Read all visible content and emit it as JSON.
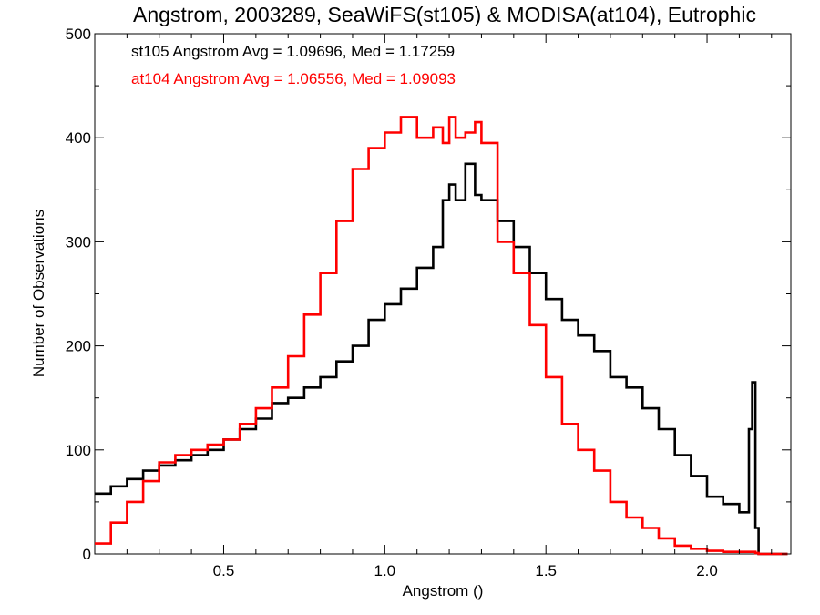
{
  "chart_data": {
    "type": "line",
    "title": "Angstrom, 2003289, SeaWiFS(st105) & MODISA(at104), Eutrophic",
    "xlabel": "Angstrom ()",
    "ylabel": "Number of Observations",
    "xlim": [
      0.1,
      2.26
    ],
    "ylim": [
      0,
      500
    ],
    "x_ticks": [
      0.5,
      1.0,
      1.5,
      2.0
    ],
    "x_tick_labels": [
      "0.5",
      "1.0",
      "1.5",
      "2.0"
    ],
    "y_ticks": [
      0,
      100,
      200,
      300,
      400,
      500
    ],
    "y_tick_labels": [
      "0",
      "100",
      "200",
      "300",
      "400",
      "500"
    ],
    "grid": false,
    "legend_placement": "top-left",
    "annotations": [
      {
        "text": "st105 Angstrom Avg = 1.09696, Med = 1.17259",
        "color": "#000000"
      },
      {
        "text": "at104 Angstrom Avg = 1.06556, Med = 1.09093",
        "color": "#ff0000"
      }
    ],
    "series": [
      {
        "color": "#000000",
        "x": [
          0.1,
          0.15,
          0.2,
          0.25,
          0.3,
          0.35,
          0.4,
          0.45,
          0.5,
          0.55,
          0.6,
          0.65,
          0.7,
          0.75,
          0.8,
          0.85,
          0.9,
          0.95,
          1.0,
          1.05,
          1.1,
          1.15,
          1.18,
          1.2,
          1.22,
          1.25,
          1.28,
          1.3,
          1.35,
          1.4,
          1.45,
          1.5,
          1.55,
          1.6,
          1.65,
          1.7,
          1.75,
          1.8,
          1.85,
          1.9,
          1.95,
          2.0,
          2.05,
          2.1,
          2.13,
          2.14,
          2.15,
          2.16,
          2.2,
          2.25
        ],
        "y": [
          58,
          65,
          72,
          80,
          85,
          90,
          95,
          100,
          110,
          120,
          130,
          145,
          150,
          160,
          170,
          185,
          200,
          225,
          240,
          255,
          275,
          295,
          340,
          355,
          340,
          375,
          345,
          340,
          320,
          295,
          270,
          245,
          225,
          210,
          195,
          170,
          160,
          140,
          120,
          95,
          75,
          55,
          48,
          40,
          120,
          165,
          25,
          0,
          0,
          0
        ]
      },
      {
        "color": "#ff0000",
        "x": [
          0.1,
          0.15,
          0.2,
          0.25,
          0.3,
          0.35,
          0.4,
          0.45,
          0.5,
          0.55,
          0.6,
          0.65,
          0.7,
          0.75,
          0.8,
          0.85,
          0.9,
          0.95,
          1.0,
          1.05,
          1.1,
          1.15,
          1.18,
          1.2,
          1.22,
          1.25,
          1.28,
          1.3,
          1.35,
          1.4,
          1.45,
          1.5,
          1.55,
          1.6,
          1.65,
          1.7,
          1.75,
          1.8,
          1.85,
          1.9,
          1.95,
          2.0,
          2.05,
          2.1,
          2.15,
          2.16,
          2.2,
          2.25
        ],
        "y": [
          10,
          30,
          50,
          70,
          88,
          95,
          100,
          105,
          110,
          125,
          140,
          160,
          190,
          230,
          270,
          320,
          370,
          390,
          405,
          420,
          400,
          410,
          395,
          420,
          400,
          405,
          415,
          395,
          300,
          270,
          220,
          170,
          125,
          100,
          80,
          50,
          35,
          25,
          15,
          8,
          5,
          3,
          2,
          2,
          1,
          0,
          0,
          0
        ]
      }
    ]
  }
}
